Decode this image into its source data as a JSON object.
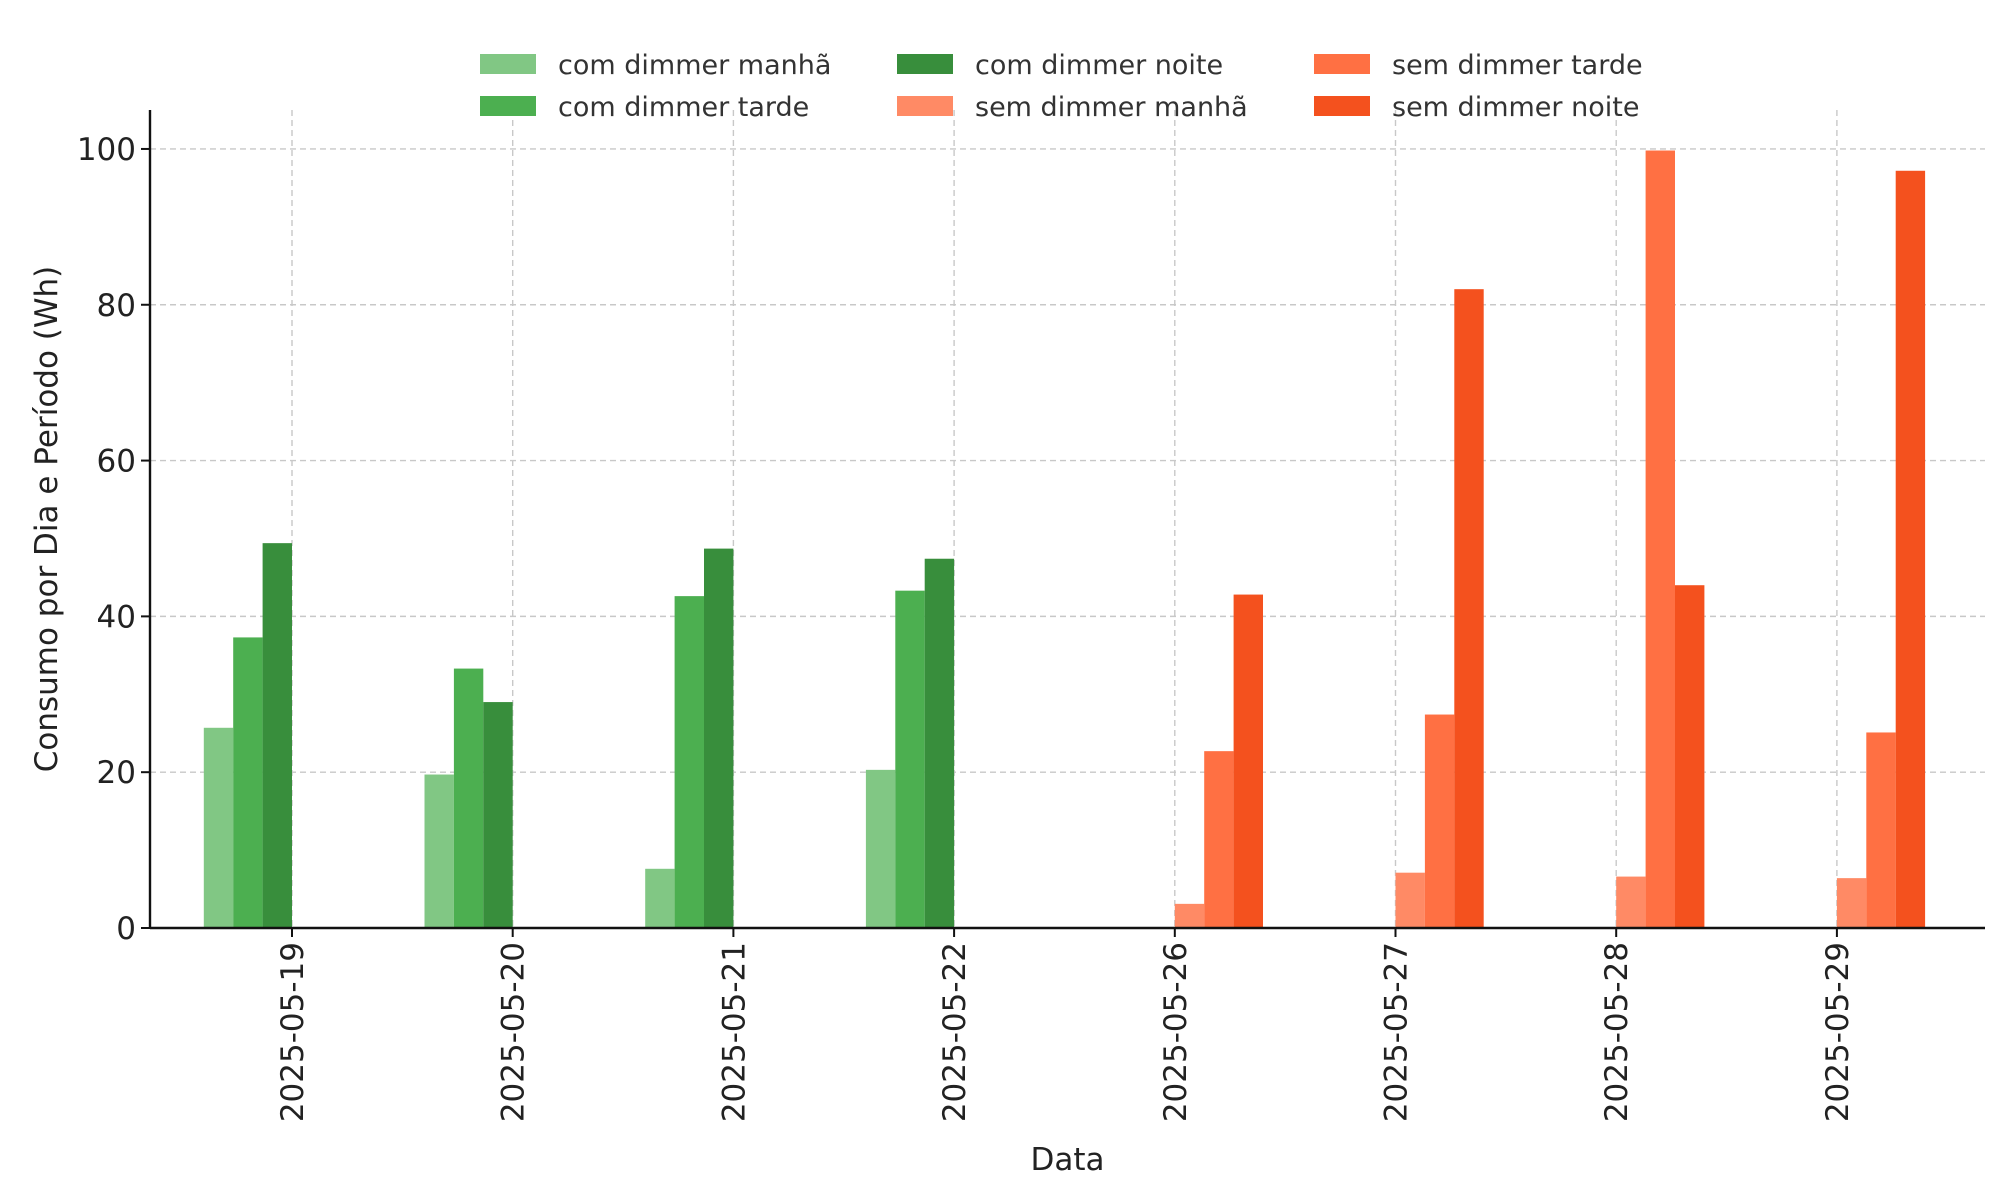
{
  "chart_data": {
    "type": "bar",
    "title": "",
    "xlabel": "Data",
    "ylabel": "Consumo por Dia e Período (Wh)",
    "ylim": [
      0,
      105
    ],
    "yticks": [
      0,
      20,
      40,
      60,
      80,
      100
    ],
    "grid": true,
    "legend_position": "top-center",
    "categories": [
      "2025-05-19",
      "2025-05-20",
      "2025-05-21",
      "2025-05-22",
      "2025-05-26",
      "2025-05-27",
      "2025-05-28",
      "2025-05-29"
    ],
    "series": [
      {
        "name": "com dimmer manhã",
        "color": "#81c784",
        "values": [
          25.7,
          19.7,
          7.6,
          20.3,
          0,
          0,
          0,
          0
        ]
      },
      {
        "name": "com dimmer tarde",
        "color": "#4caf50",
        "values": [
          37.3,
          33.3,
          42.6,
          43.3,
          0,
          0,
          0,
          0
        ]
      },
      {
        "name": "com dimmer noite",
        "color": "#388e3c",
        "values": [
          49.4,
          29.0,
          48.7,
          47.4,
          0,
          0,
          0,
          0
        ]
      },
      {
        "name": "sem dimmer manhã",
        "color": "#ff8a65",
        "values": [
          0,
          0,
          0,
          0,
          3.1,
          7.1,
          6.6,
          6.4
        ]
      },
      {
        "name": "sem dimmer tarde",
        "color": "#ff7043",
        "values": [
          0,
          0,
          0,
          0,
          22.7,
          27.4,
          99.8,
          25.1
        ]
      },
      {
        "name": "sem dimmer noite",
        "color": "#f4511e",
        "values": [
          0,
          0,
          0,
          0,
          42.8,
          82.0,
          44.0,
          97.2
        ]
      }
    ]
  }
}
